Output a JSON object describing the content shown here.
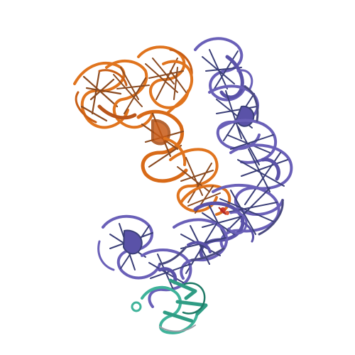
{
  "figure": {
    "kind": "molecular-cartoon",
    "background": "#ffffff",
    "chains": [
      {
        "name": "orange-rna-chain",
        "color": "#e0741e",
        "shade": "#a84a10"
      },
      {
        "name": "purple-rna-chain",
        "color": "#6a60b8",
        "shade": "#3b3f78"
      },
      {
        "name": "teal-protein-chain",
        "color": "#3fb39a",
        "shade": "#1f7a66"
      }
    ],
    "ligand_color": "#d23a2a"
  }
}
